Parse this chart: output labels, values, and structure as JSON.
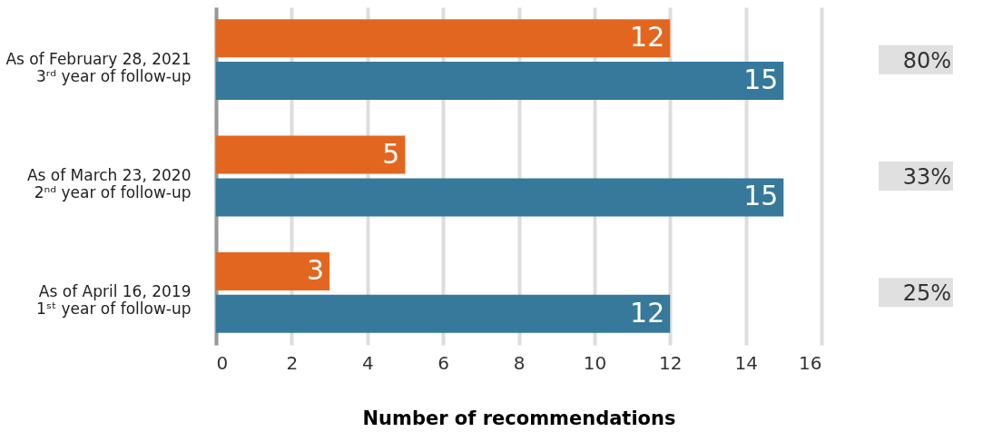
{
  "chart_data": {
    "type": "bar",
    "orientation": "horizontal",
    "categories": [
      "As of February 28, 2021\n3ʳᵈ year of follow-up",
      "As of March 23, 2020\n2ⁿᵈ year of follow-up",
      "As of April 16, 2019\n1ˢᵗ year of follow-up"
    ],
    "series": [
      {
        "color": "#e2661f",
        "values": [
          12,
          5,
          3
        ]
      },
      {
        "color": "#36799a",
        "values": [
          15,
          15,
          12
        ]
      }
    ],
    "xlim": [
      0,
      16
    ],
    "xticks": [
      0,
      2,
      4,
      6,
      8,
      10,
      12,
      14,
      16
    ],
    "xlabel": "Number of recommendations",
    "grid": "x",
    "data_labels": true,
    "legend": false,
    "annotations": [
      "80%",
      "33%",
      "25%"
    ]
  }
}
